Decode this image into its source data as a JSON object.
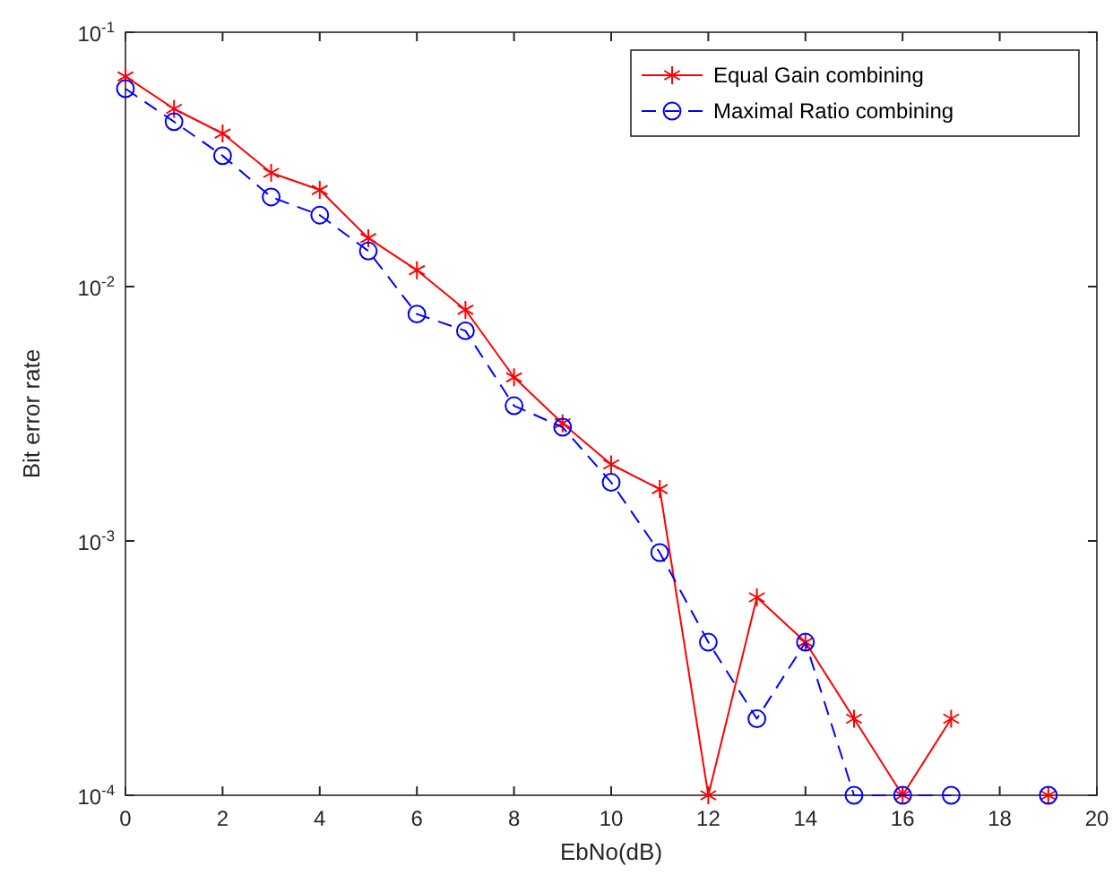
{
  "chart_data": {
    "type": "line",
    "xlabel": "EbNo(dB)",
    "ylabel": "Bit error rate",
    "log": "y",
    "grid": false,
    "legend": "top right",
    "x": [
      0,
      1,
      2,
      3,
      4,
      5,
      6,
      7,
      8,
      9,
      10,
      11,
      12,
      13,
      14,
      15,
      16,
      17,
      18,
      19
    ],
    "xlim": [
      0,
      20
    ],
    "xticks": [
      0,
      2,
      4,
      6,
      8,
      10,
      12,
      14,
      16,
      18,
      20
    ],
    "ylim": [
      0.0001,
      0.1
    ],
    "yticks": [
      {
        "value": 0.0001,
        "label": "10$^{-4}$"
      },
      {
        "value": 0.001,
        "label": "10$^{-3}$"
      },
      {
        "value": 0.01,
        "label": "10$^{-2}$"
      },
      {
        "value": 0.1,
        "label": "10$^{-1}$"
      }
    ],
    "series": [
      {
        "name": "Equal Gain combining",
        "color": "#ff0000",
        "marker": "cross",
        "line_style": "solid",
        "values": [
          0.067,
          0.05,
          0.04,
          0.028,
          0.024,
          0.0155,
          0.0116,
          0.0081,
          0.0044,
          0.0029,
          0.002,
          0.0016,
          0.0001,
          0.0006,
          0.0004,
          0.0002,
          0.0001,
          0.0002,
          null,
          0.0001
        ]
      },
      {
        "name": "Maximal Ratio combining",
        "color": "#0000ff",
        "marker": "circle",
        "line_style": "dashed",
        "values": [
          0.06,
          0.0445,
          0.0327,
          0.0225,
          0.0191,
          0.0138,
          0.0078,
          0.0067,
          0.0034,
          0.0028,
          0.0017,
          0.0009,
          0.0004,
          0.0002,
          0.0004,
          0.0001,
          0.0001,
          0.0001,
          null,
          0.0001
        ]
      }
    ]
  }
}
